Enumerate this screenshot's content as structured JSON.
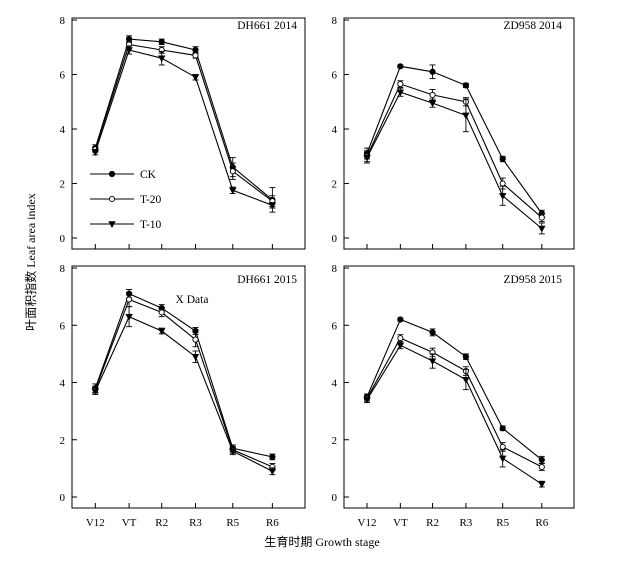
{
  "figure": {
    "ylabel": "叶面积指数 Leaf area index",
    "xlabel": "生育时期 Growth stage"
  },
  "legend": {
    "items": [
      {
        "name": "CK",
        "marker": "circle-filled"
      },
      {
        "name": "T-20",
        "marker": "circle-open"
      },
      {
        "name": "T-10",
        "marker": "triangle-down"
      }
    ]
  },
  "chart_data": [
    {
      "type": "line",
      "title": "DH661 2014",
      "categories": [
        "V12",
        "VT",
        "R2",
        "R3",
        "R5",
        "R6"
      ],
      "ylim": [
        0,
        8
      ],
      "yticks": [
        0,
        2,
        4,
        6,
        8
      ],
      "show_xticklabels": false,
      "series": [
        {
          "name": "CK",
          "values": [
            3.3,
            7.3,
            7.2,
            6.9,
            2.6,
            1.4
          ],
          "errors": [
            0.12,
            0.12,
            0.1,
            0.12,
            0.35,
            0.45
          ]
        },
        {
          "name": "T-20",
          "values": [
            3.25,
            7.1,
            6.9,
            6.7,
            2.45,
            1.35
          ],
          "errors": [
            0.1,
            0.12,
            0.12,
            0.1,
            0.3,
            0.2
          ]
        },
        {
          "name": "T-10",
          "values": [
            3.15,
            6.9,
            6.6,
            5.9,
            1.75,
            1.2
          ],
          "errors": [
            0.1,
            0.15,
            0.25,
            0.1,
            0.12,
            0.1
          ]
        }
      ]
    },
    {
      "type": "line",
      "title": "ZD958 2014",
      "categories": [
        "V12",
        "VT",
        "R2",
        "R3",
        "R5",
        "R6"
      ],
      "ylim": [
        0,
        8
      ],
      "yticks": [
        0,
        2,
        4,
        6,
        8
      ],
      "show_xticklabels": false,
      "series": [
        {
          "name": "CK",
          "values": [
            3.1,
            6.3,
            6.1,
            5.6,
            2.9,
            0.9
          ],
          "errors": [
            0.2,
            0.05,
            0.25,
            0.08,
            0.1,
            0.12
          ]
        },
        {
          "name": "T-20",
          "values": [
            3.0,
            5.65,
            5.25,
            5.0,
            2.0,
            0.75
          ],
          "errors": [
            0.2,
            0.12,
            0.2,
            0.15,
            0.2,
            0.15
          ]
        },
        {
          "name": "T-10",
          "values": [
            2.95,
            5.35,
            4.95,
            4.5,
            1.55,
            0.35
          ],
          "errors": [
            0.2,
            0.15,
            0.15,
            0.6,
            0.35,
            0.2
          ]
        }
      ]
    },
    {
      "type": "line",
      "title": "DH661 2015",
      "annotation": "X Data",
      "categories": [
        "V12",
        "VT",
        "R2",
        "R3",
        "R5",
        "R6"
      ],
      "ylim": [
        0,
        8
      ],
      "yticks": [
        0,
        2,
        4,
        6,
        8
      ],
      "show_xticklabels": true,
      "series": [
        {
          "name": "CK",
          "values": [
            3.8,
            7.1,
            6.6,
            5.8,
            1.7,
            1.4
          ],
          "errors": [
            0.15,
            0.15,
            0.12,
            0.12,
            0.12,
            0.1
          ]
        },
        {
          "name": "T-20",
          "values": [
            3.75,
            6.9,
            6.45,
            5.5,
            1.65,
            1.05
          ],
          "errors": [
            0.12,
            0.25,
            0.15,
            0.25,
            0.12,
            0.12
          ]
        },
        {
          "name": "T-10",
          "values": [
            3.7,
            6.3,
            5.8,
            4.9,
            1.6,
            0.9
          ],
          "errors": [
            0.12,
            0.35,
            0.1,
            0.2,
            0.12,
            0.12
          ]
        }
      ]
    },
    {
      "type": "line",
      "title": "ZD958 2015",
      "categories": [
        "V12",
        "VT",
        "R2",
        "R3",
        "R5",
        "R6"
      ],
      "ylim": [
        0,
        8
      ],
      "yticks": [
        0,
        2,
        4,
        6,
        8
      ],
      "show_xticklabels": true,
      "series": [
        {
          "name": "CK",
          "values": [
            3.5,
            6.2,
            5.75,
            4.9,
            2.4,
            1.3
          ],
          "errors": [
            0.1,
            0.05,
            0.12,
            0.1,
            0.08,
            0.12
          ]
        },
        {
          "name": "T-20",
          "values": [
            3.45,
            5.55,
            5.05,
            4.4,
            1.75,
            1.05
          ],
          "errors": [
            0.1,
            0.12,
            0.15,
            0.15,
            0.15,
            0.12
          ]
        },
        {
          "name": "T-10",
          "values": [
            3.4,
            5.3,
            4.75,
            4.1,
            1.35,
            0.45
          ],
          "errors": [
            0.1,
            0.12,
            0.25,
            0.35,
            0.3,
            0.1
          ]
        }
      ]
    }
  ]
}
